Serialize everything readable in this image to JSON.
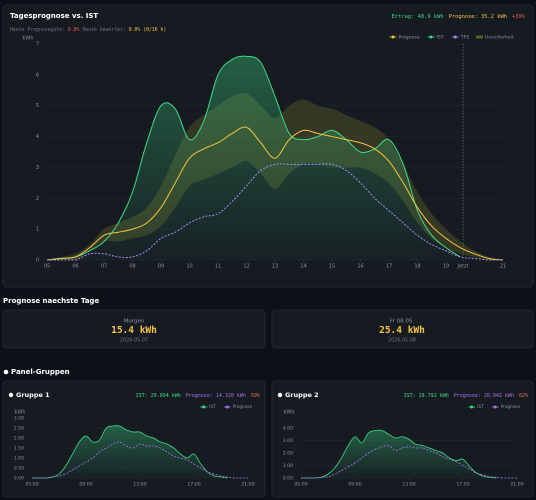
{
  "chart_data": [
    {
      "type": "line",
      "title": "Tagesprognose vs. IST",
      "summary": [
        {
          "text": "Ertrag: 48.9 kWh",
          "color": "#3ddc84"
        },
        {
          "text": "Prognose: 35.2 kWh",
          "color": "#f5c542"
        },
        {
          "text": "+39%",
          "color": "#f05a5a"
        }
      ],
      "subtitle": [
        {
          "text": "Heute Prognosegüte:",
          "color": "#6e7681"
        },
        {
          "text": "0.0%",
          "color": "#f05a5a"
        },
        {
          "text": "Heute bewertet:",
          "color": "#6e7681"
        },
        {
          "text": "0.0% (0/16 h)",
          "color": "#f5c542"
        }
      ],
      "y_label": "kWh",
      "legend": "top-right",
      "grid": true,
      "now": 19.6,
      "x": [
        5,
        5.5,
        6,
        6.5,
        7,
        7.5,
        8,
        8.5,
        9,
        9.5,
        10,
        10.5,
        11,
        11.5,
        12,
        12.5,
        13,
        13.5,
        14,
        14.5,
        15,
        15.5,
        16,
        16.5,
        17,
        17.5,
        18,
        18.5,
        19,
        19.5,
        20,
        20.5,
        21
      ],
      "xlim": [
        5,
        21
      ],
      "xticks": [
        {
          "value": 5,
          "label": "05"
        },
        {
          "value": 6,
          "label": "06"
        },
        {
          "value": 7,
          "label": "07"
        },
        {
          "value": 8,
          "label": "08"
        },
        {
          "value": 9,
          "label": "09"
        },
        10,
        11,
        12,
        13,
        14,
        15,
        16,
        17,
        18,
        19,
        {
          "value": 19.6,
          "label": "Jetzt"
        },
        21
      ],
      "ylim": [
        0,
        7
      ],
      "yticks": [
        0,
        1,
        2,
        3,
        4,
        5,
        6,
        7
      ],
      "series": [
        {
          "name": "Prognose",
          "color": "#f5c542",
          "values": [
            0,
            0.05,
            0.1,
            0.4,
            0.8,
            0.9,
            1.0,
            1.2,
            1.7,
            2.5,
            3.3,
            3.6,
            3.8,
            4.1,
            4.3,
            3.8,
            3.3,
            3.9,
            4.2,
            4.1,
            4.0,
            3.9,
            3.8,
            3.6,
            3.2,
            2.5,
            1.7,
            1.1,
            0.7,
            0.4,
            0.2,
            0.05,
            0
          ]
        },
        {
          "name": "IST",
          "color": "#3ddc84",
          "area": true,
          "values": [
            0,
            0.05,
            0.1,
            0.3,
            0.6,
            1.2,
            2.2,
            3.8,
            5.0,
            4.9,
            3.9,
            4.5,
            6.0,
            6.5,
            6.6,
            6.4,
            5.3,
            4.1,
            3.9,
            4.0,
            4.2,
            3.9,
            3.5,
            3.6,
            3.9,
            3.1,
            1.6,
            0.8,
            0.4,
            0.1,
            null,
            null,
            null
          ]
        },
        {
          "name": "TFS",
          "color": "#a78bfa",
          "dashed": true,
          "values": [
            0,
            0,
            0,
            0.2,
            0.2,
            0.1,
            0.1,
            0.3,
            0.7,
            0.9,
            1.2,
            1.4,
            1.5,
            1.9,
            2.4,
            2.9,
            3.1,
            3.1,
            3.1,
            3.1,
            3.1,
            2.9,
            2.5,
            2.0,
            1.6,
            1.2,
            0.8,
            0.5,
            0.3,
            0.1,
            0.05,
            0,
            0
          ]
        },
        {
          "name": "Unsicherheit",
          "color": "#5c5a2a",
          "upper": [
            0,
            0.1,
            0.2,
            0.5,
            1.0,
            1.2,
            1.4,
            1.7,
            2.4,
            3.4,
            4.3,
            4.7,
            5.0,
            5.3,
            5.4,
            5.0,
            4.6,
            5.0,
            5.2,
            5.0,
            4.9,
            4.7,
            4.5,
            4.3,
            3.9,
            3.1,
            2.2,
            1.5,
            1.0,
            0.6,
            0.3,
            0.1,
            0
          ],
          "lower": [
            0,
            0,
            0,
            0.3,
            0.6,
            0.6,
            0.7,
            0.8,
            1.1,
            1.7,
            2.4,
            2.6,
            2.8,
            3.0,
            3.2,
            2.8,
            2.3,
            2.8,
            3.1,
            3.1,
            3.0,
            3.0,
            3.0,
            2.8,
            2.5,
            1.9,
            1.2,
            0.7,
            0.4,
            0.2,
            0.1,
            0,
            0
          ]
        }
      ]
    },
    {
      "type": "line",
      "title": "Gruppe 1",
      "summary": [
        {
          "text": "IST: 20.094 kWh",
          "color": "#3ddc84"
        },
        {
          "text": "Prognose: 14.320 kWh",
          "color": "#b06cf0"
        },
        {
          "text": "59%",
          "color": "#f0705a"
        }
      ],
      "y_label": "kWh",
      "legend": "top-right",
      "grid": true,
      "x": [
        5,
        5.5,
        6,
        6.5,
        7,
        7.5,
        8,
        8.5,
        9,
        9.5,
        10,
        10.5,
        11,
        11.5,
        12,
        12.5,
        13,
        13.5,
        14,
        14.5,
        15,
        15.5,
        16,
        16.5,
        17,
        17.5,
        18,
        18.5,
        19,
        19.5,
        20,
        20.5,
        21
      ],
      "xlim": [
        5,
        21
      ],
      "xticks": [
        {
          "value": 5,
          "label": "05:00"
        },
        {
          "value": 9,
          "label": "09:00"
        },
        {
          "value": 13,
          "label": "13:00"
        },
        {
          "value": 17,
          "label": "17:00"
        },
        {
          "value": 21,
          "label": "21:00"
        }
      ],
      "ylim": [
        0,
        3
      ],
      "yticks": [
        {
          "value": 0,
          "label": "0.00"
        },
        {
          "value": 0.5,
          "label": "0.50"
        },
        {
          "value": 1,
          "label": "1.00"
        },
        {
          "value": 1.5,
          "label": "1.50"
        },
        {
          "value": 2,
          "label": "2.00"
        },
        {
          "value": 2.5,
          "label": "2.50"
        },
        {
          "value": 3,
          "label": "3.00"
        }
      ],
      "series": [
        {
          "name": "IST",
          "color": "#3ddc84",
          "area": true,
          "values": [
            0,
            0,
            0,
            0.05,
            0.2,
            0.6,
            1.2,
            1.8,
            2.1,
            1.8,
            1.9,
            2.5,
            2.6,
            2.6,
            2.4,
            2.3,
            2.3,
            2.1,
            2.0,
            1.8,
            1.7,
            1.5,
            1.2,
            1.0,
            1.2,
            0.7,
            0.3,
            0.1,
            0.05,
            0,
            null,
            null,
            null
          ]
        },
        {
          "name": "Prognose",
          "color": "#b06cf0",
          "dashed": true,
          "values": [
            0,
            0,
            0,
            0.05,
            0.1,
            0.2,
            0.4,
            0.6,
            0.8,
            1.0,
            1.3,
            1.5,
            1.7,
            1.8,
            1.6,
            1.5,
            1.7,
            1.6,
            1.6,
            1.5,
            1.3,
            1.1,
            1.0,
            0.9,
            0.7,
            0.5,
            0.3,
            0.2,
            0.1,
            0.05,
            0,
            0,
            0
          ]
        }
      ]
    },
    {
      "type": "line",
      "title": "Gruppe 2",
      "summary": [
        {
          "text": "IST: 28.792 kWh",
          "color": "#3ddc84"
        },
        {
          "text": "Prognose: 20.942 kWh",
          "color": "#b06cf0"
        },
        {
          "text": "62%",
          "color": "#f0705a"
        }
      ],
      "y_label": "kWh",
      "legend": "top-right",
      "grid": true,
      "x": [
        5,
        5.5,
        6,
        6.5,
        7,
        7.5,
        8,
        8.5,
        9,
        9.5,
        10,
        10.5,
        11,
        11.5,
        12,
        12.5,
        13,
        13.5,
        14,
        14.5,
        15,
        15.5,
        16,
        16.5,
        17,
        17.5,
        18,
        18.5,
        19,
        19.5,
        20,
        20.5,
        21
      ],
      "xlim": [
        5,
        21
      ],
      "xticks": [
        {
          "value": 5,
          "label": "05:00"
        },
        {
          "value": 9,
          "label": "09:00"
        },
        {
          "value": 13,
          "label": "13:00"
        },
        {
          "value": 17,
          "label": "17:00"
        },
        {
          "value": 21,
          "label": "21:00"
        }
      ],
      "ylim": [
        0,
        4.8
      ],
      "yticks": [
        {
          "value": 0,
          "label": "0.00"
        },
        {
          "value": 1,
          "label": "1.00"
        },
        {
          "value": 2,
          "label": "2.00"
        },
        {
          "value": 3,
          "label": "3.00"
        },
        {
          "value": 4,
          "label": "4.00"
        }
      ],
      "series": [
        {
          "name": "IST",
          "color": "#3ddc84",
          "area": true,
          "values": [
            0,
            0,
            0,
            0.05,
            0.3,
            0.8,
            1.6,
            2.6,
            3.3,
            2.8,
            3.6,
            3.8,
            3.8,
            3.5,
            3.2,
            3.3,
            3.1,
            2.7,
            2.6,
            2.4,
            2.2,
            2.0,
            1.6,
            1.4,
            1.5,
            0.9,
            0.4,
            0.15,
            0.05,
            0,
            null,
            null,
            null
          ]
        },
        {
          "name": "Prognose",
          "color": "#b06cf0",
          "dashed": true,
          "values": [
            0,
            0,
            0,
            0.05,
            0.1,
            0.3,
            0.6,
            0.9,
            1.2,
            1.6,
            2.0,
            2.3,
            2.5,
            2.6,
            2.2,
            2.4,
            2.5,
            2.4,
            2.4,
            2.2,
            2.0,
            1.7,
            1.5,
            1.3,
            1.0,
            0.7,
            0.4,
            0.25,
            0.1,
            0.05,
            0,
            0,
            0
          ]
        }
      ]
    }
  ],
  "forecast": {
    "title": "Prognose naechste Tage",
    "days": [
      {
        "label": "Morgen",
        "value": "15.4 kWh",
        "date": "2026-05-07"
      },
      {
        "label": "Fr 08.05.",
        "value": "25.4 kWh",
        "date": "2026-05-08"
      }
    ]
  },
  "groups_title": "Panel-Gruppen"
}
